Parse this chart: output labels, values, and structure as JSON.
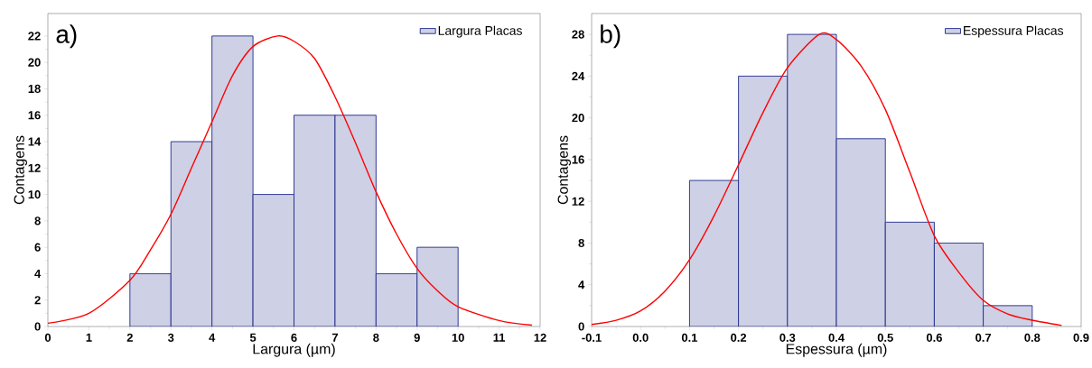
{
  "chart_data": [
    {
      "type": "histogram",
      "xlabel": "Largura (µm)",
      "ylabel": "Contagens",
      "annotations": [
        "a)"
      ],
      "legend": "top right",
      "bins": [
        2,
        3,
        4,
        5,
        6,
        7,
        8,
        9,
        10
      ],
      "series": [
        {
          "name": "Largura Placas",
          "color": "#1f2a8a",
          "values": [
            4,
            14,
            22,
            10,
            16,
            16,
            4,
            6
          ]
        },
        {
          "type": "line",
          "color": "#ff0000",
          "x": [
            0,
            1,
            2,
            2.5,
            3,
            3.5,
            4,
            4.5,
            5,
            5.6,
            6,
            6.5,
            7,
            7.5,
            8,
            8.5,
            9,
            9.5,
            10,
            11,
            11.8
          ],
          "values": [
            0.25,
            1.0,
            3.5,
            5.8,
            8.5,
            12,
            15.5,
            19,
            21.2,
            22,
            21.6,
            20.3,
            17.4,
            13.9,
            10.2,
            7,
            4.4,
            2.7,
            1.5,
            0.45,
            0.1
          ]
        }
      ],
      "xlim": [
        0,
        12
      ],
      "ylim": [
        0,
        23.7
      ],
      "xticks": [
        0,
        1,
        2,
        3,
        4,
        5,
        6,
        7,
        8,
        9,
        10,
        11,
        12
      ],
      "yticks": [
        0,
        2,
        4,
        6,
        8,
        10,
        12,
        14,
        16,
        18,
        20,
        22
      ]
    },
    {
      "type": "histogram",
      "xlabel": "Espessura (µm)",
      "ylabel": "Contagens",
      "annotations": [
        "b)"
      ],
      "legend": "top right",
      "bins": [
        0.1,
        0.2,
        0.3,
        0.4,
        0.5,
        0.6,
        0.7,
        0.8
      ],
      "series": [
        {
          "name": "Espessura Placas",
          "color": "#1f2a8a",
          "values": [
            14,
            24,
            28,
            18,
            10,
            8,
            2
          ]
        },
        {
          "type": "line",
          "color": "#ff0000",
          "x": [
            -0.1,
            -0.05,
            0,
            0.05,
            0.1,
            0.15,
            0.2,
            0.25,
            0.3,
            0.365,
            0.4,
            0.45,
            0.5,
            0.55,
            0.6,
            0.65,
            0.7,
            0.75,
            0.8,
            0.86
          ],
          "values": [
            0.2,
            0.6,
            1.5,
            3.4,
            6.4,
            10.6,
            15.5,
            20.5,
            24.8,
            28,
            27.5,
            25,
            20.8,
            14.8,
            8.7,
            5.2,
            2.5,
            1.2,
            0.6,
            0.1
          ]
        }
      ],
      "xlim": [
        -0.1,
        0.9
      ],
      "ylim": [
        0,
        30
      ],
      "xticks": [
        -0.1,
        {
          "value": 0,
          "label": "0.0"
        },
        0.1,
        0.2,
        0.3,
        0.4,
        0.5,
        0.6,
        0.7,
        0.8,
        0.9
      ],
      "yticks": [
        0,
        4,
        8,
        12,
        16,
        20,
        24,
        28
      ]
    }
  ]
}
